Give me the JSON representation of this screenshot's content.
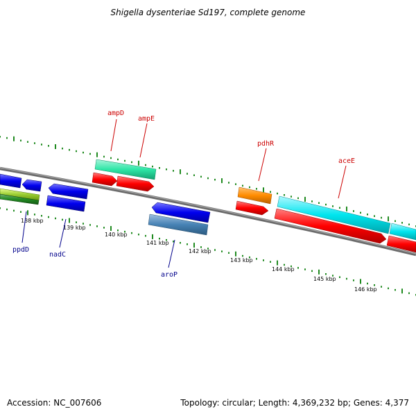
{
  "title": "Shigella dysenteriae Sd197, complete genome",
  "accession_text": "Accession: NC_007606",
  "summary_text": "Topology: circular; Length: 4,369,232 bp; Genes: 4,377",
  "colors": {
    "backbone": "#808080",
    "dots": "#1f8a1f",
    "label_forward": "#cc0000",
    "label_reverse": "#00008b"
  },
  "ticks": [
    "138 kbp",
    "139 kbp",
    "140 kbp",
    "141 kbp",
    "142 kbp",
    "143 kbp",
    "144 kbp",
    "145 kbp",
    "146 kbp"
  ],
  "genes_forward": [
    {
      "name": "ampD",
      "color": "#2ee6a6"
    },
    {
      "name": "ampE",
      "color": "#ff0000"
    },
    {
      "name": "pdhR",
      "color": "#ff8c00"
    },
    {
      "name": "aceE",
      "color": "#00e5ee"
    }
  ],
  "genes_reverse": [
    {
      "name": "ppdD",
      "color": "#0000ee"
    },
    {
      "name": "nadC",
      "color": "#0000ee"
    },
    {
      "name": "aroP",
      "color": "#0000ee"
    }
  ]
}
